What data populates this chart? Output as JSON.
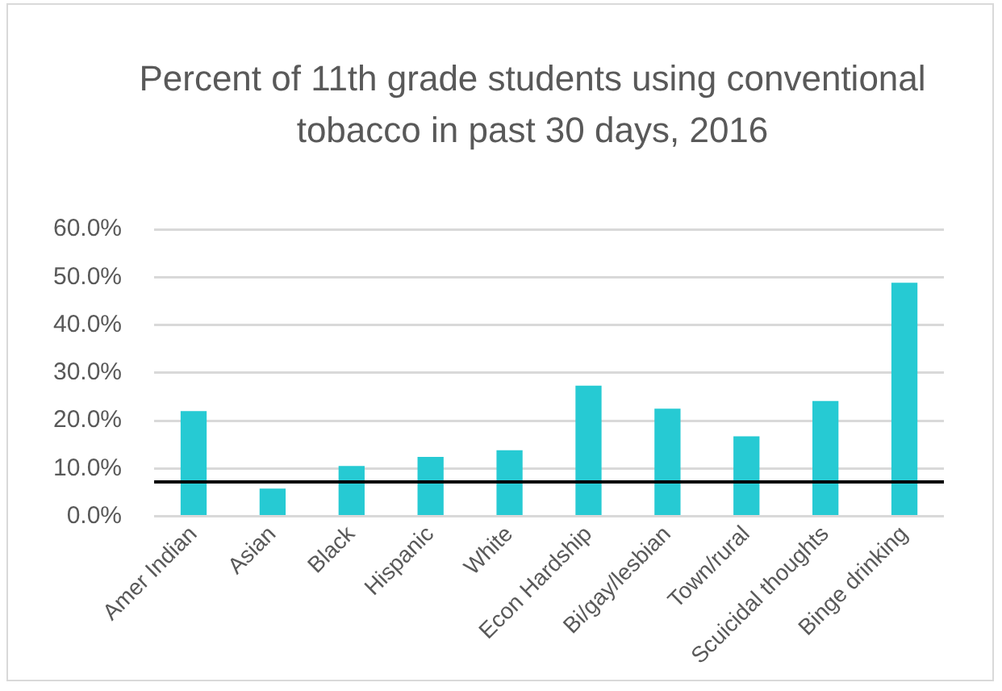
{
  "chart_data": {
    "type": "bar",
    "title": "Percent of 11th grade students using conventional tobacco in past 30 days, 2016",
    "categories": [
      "Amer Indian",
      "Asian",
      "Black",
      "Hispanic",
      "White",
      "Econ Hardship",
      "Bi/gay/lesbian",
      "Town/rural",
      "Scuicidal thoughts",
      "Binge drinking"
    ],
    "values": [
      22.0,
      5.8,
      10.5,
      12.4,
      13.8,
      27.3,
      22.5,
      16.7,
      24.1,
      48.8
    ],
    "color": "#26cad3",
    "ylim": [
      0,
      60
    ],
    "yticks": [
      {
        "value": 0,
        "label": "0.0%"
      },
      {
        "value": 10,
        "label": "10.0%"
      },
      {
        "value": 20,
        "label": "20.0%"
      },
      {
        "value": 30,
        "label": "30.0%"
      },
      {
        "value": 40,
        "label": "40.0%"
      },
      {
        "value": 50,
        "label": "50.0%"
      },
      {
        "value": 60,
        "label": "60.0%"
      }
    ],
    "grid": "y",
    "ref_lines": [
      {
        "axis": "y",
        "value": 7.2,
        "color": "#000000"
      }
    ]
  }
}
